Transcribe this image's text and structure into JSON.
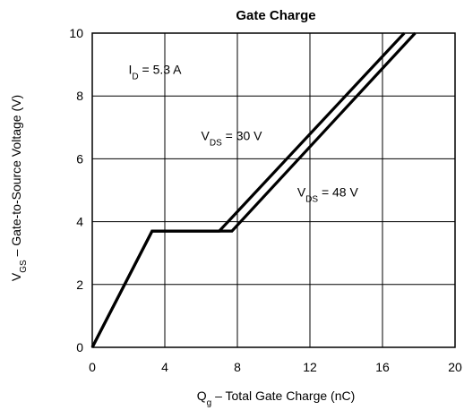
{
  "chart_data": {
    "type": "line",
    "title": "Gate Charge",
    "xlabel": {
      "main": "Q",
      "sub": "g",
      "rest": "  –  Total Gate Charge (nC)"
    },
    "ylabel": {
      "main": "V",
      "sub": "GS",
      "rest": "  –  Gate-to-Source Voltage (V)"
    },
    "xlim": [
      0,
      20
    ],
    "ylim": [
      0,
      10
    ],
    "xticks": [
      0,
      4,
      8,
      12,
      16,
      20
    ],
    "yticks": [
      0,
      2,
      4,
      6,
      8,
      10
    ],
    "grid": true,
    "series": [
      {
        "name": "VDS = 30 V",
        "x": [
          0,
          3.3,
          7.0,
          17.2
        ],
        "y": [
          0,
          3.7,
          3.7,
          10
        ]
      },
      {
        "name": "VDS = 48 V",
        "x": [
          0,
          3.3,
          7.7,
          17.8
        ],
        "y": [
          0,
          3.7,
          3.7,
          10
        ]
      }
    ],
    "annotations": [
      {
        "id": "id",
        "main": "I",
        "sub": "D",
        "rest": " = 5.3 A",
        "x": 2.0,
        "y": 8.7
      },
      {
        "id": "vds30",
        "main": "V",
        "sub": "DS",
        "rest": " = 30 V",
        "x": 6.0,
        "y": 6.6
      },
      {
        "id": "vds48",
        "main": "V",
        "sub": "DS",
        "rest": " = 48 V",
        "x": 11.3,
        "y": 4.8
      }
    ],
    "colors": {
      "line": "#000000",
      "gap": "#ffffff",
      "grid": "#000000"
    }
  }
}
